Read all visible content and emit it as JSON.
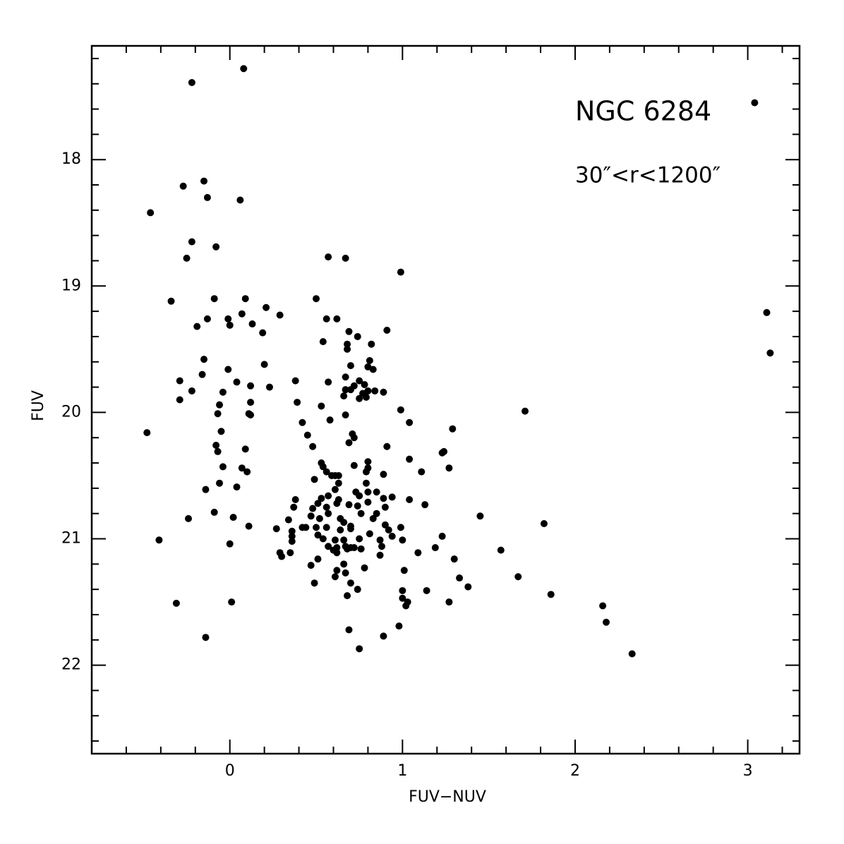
{
  "chart_data": {
    "type": "scatter",
    "xlabel": "FUV−NUV",
    "ylabel": "FUV",
    "annotations": [
      "NGC 6284",
      "30″<r<1200″"
    ],
    "xlim": [
      -0.8,
      3.3
    ],
    "ylim": [
      22.7,
      17.1
    ],
    "xticks": [
      0,
      1,
      2,
      3
    ],
    "yticks": [
      18,
      19,
      20,
      21,
      22
    ],
    "xticks_minor": [
      -0.6,
      -0.4,
      -0.2,
      0.2,
      0.4,
      0.6,
      0.8,
      1.2,
      1.4,
      1.6,
      1.8,
      2.2,
      2.4,
      2.6,
      2.8,
      3.2
    ],
    "yticks_minor": [
      17.2,
      17.4,
      17.6,
      17.8,
      18.2,
      18.4,
      18.6,
      18.8,
      19.2,
      19.4,
      19.6,
      19.8,
      20.2,
      20.4,
      20.6,
      20.8,
      21.2,
      21.4,
      21.6,
      21.8,
      22.2,
      22.4,
      22.6
    ],
    "color": "#000000",
    "x": [
      0.08,
      -0.22,
      3.04,
      -0.15,
      -0.27,
      -0.13,
      0.06,
      -0.46,
      -0.22,
      -0.08,
      -0.25,
      0.57,
      0.67,
      0.99,
      -0.34,
      -0.09,
      0.09,
      0.5,
      3.11,
      0.21,
      0.29,
      0.07,
      -0.13,
      -0.01,
      0.56,
      0.62,
      0.13,
      0,
      -0.19,
      0.19,
      0.91,
      0.69,
      0.74,
      0.54,
      0.68,
      0.82,
      0.68,
      3.13,
      -0.15,
      0.81,
      0.2,
      0.7,
      0.8,
      0.83,
      -0.01,
      -0.16,
      0.67,
      -0.29,
      0.38,
      0.57,
      0.75,
      0.04,
      0.72,
      0.78,
      0.12,
      0.23,
      -0.22,
      0.67,
      -0.04,
      0.7,
      0.84,
      0.77,
      0.8,
      0.89,
      0.66,
      -0.29,
      0.75,
      0.79,
      0.39,
      0.12,
      -0.06,
      0.53,
      0.99,
      1.71,
      -0.07,
      0.11,
      0.12,
      0.67,
      0.58,
      0.42,
      1.04,
      -0.48,
      -0.05,
      1.29,
      0.71,
      0.45,
      0.72,
      0.69,
      1.24,
      -0.08,
      0.48,
      0.09,
      0.91,
      1.23,
      -0.07,
      1.04,
      0.8,
      0.53,
      0.8,
      0.54,
      -0.04,
      0.07,
      0.72,
      1.27,
      0.56,
      0.1,
      0.79,
      1.11,
      0.59,
      0.61,
      0.63,
      0.89,
      0.49,
      -0.06,
      0.63,
      0.79,
      0.04,
      -0.14,
      0.61,
      0.8,
      0.73,
      0.85,
      0.57,
      0.75,
      0.89,
      0.94,
      1.04,
      0.38,
      0.63,
      0.53,
      0.62,
      0.51,
      1.13,
      0.69,
      0.8,
      0.74,
      0.37,
      0.48,
      0.56,
      0.9,
      1.45,
      0.57,
      0.47,
      0.76,
      0.85,
      -0.24,
      -0.09,
      0.02,
      0.34,
      0.52,
      0.64,
      0.83,
      1.82,
      0.66,
      0.11,
      0.42,
      0.44,
      0.5,
      0.56,
      0.7,
      0.7,
      0.9,
      0.99,
      0.27,
      0.92,
      0.64,
      0.36,
      1.23,
      0.51,
      0.81,
      0.94,
      -0.41,
      0.36,
      0.36,
      0.75,
      0.54,
      0.61,
      0.66,
      0.87,
      1.0,
      0,
      0.57,
      0.67,
      0.7,
      0.62,
      0.68,
      0.72,
      0.76,
      0.88,
      1.19,
      0.6,
      1.57,
      0.29,
      0.35,
      0.62,
      1.09,
      0.3,
      0.87,
      0.51,
      1.3,
      0.47,
      0.66,
      0.62,
      0.78,
      1.01,
      0.67,
      0.61,
      1.33,
      1.67,
      0.49,
      0.7,
      1.38,
      0.74,
      1.0,
      1.14,
      1.86,
      0.68,
      1.0,
      0.01,
      1.27,
      1.03,
      1.02,
      -0.31,
      2.16,
      2.18,
      0.69,
      0.98,
      0.89,
      -0.14,
      0.75,
      2.33
    ],
    "values": [
      17.28,
      17.39,
      17.55,
      18.17,
      18.21,
      18.3,
      18.32,
      18.42,
      18.65,
      18.69,
      18.78,
      18.77,
      18.78,
      18.89,
      19.12,
      19.1,
      19.1,
      19.1,
      19.21,
      19.17,
      19.23,
      19.22,
      19.26,
      19.26,
      19.26,
      19.26,
      19.3,
      19.31,
      19.32,
      19.37,
      19.35,
      19.36,
      19.4,
      19.44,
      19.46,
      19.46,
      19.5,
      19.53,
      19.58,
      19.59,
      19.62,
      19.63,
      19.64,
      19.66,
      19.66,
      19.7,
      19.72,
      19.75,
      19.75,
      19.76,
      19.75,
      19.76,
      19.79,
      19.78,
      19.79,
      19.8,
      19.83,
      19.82,
      19.84,
      19.82,
      19.83,
      19.85,
      19.83,
      19.84,
      19.87,
      19.9,
      19.89,
      19.88,
      19.92,
      19.92,
      19.94,
      19.95,
      19.98,
      19.99,
      20.01,
      20.01,
      20.02,
      20.02,
      20.06,
      20.08,
      20.08,
      20.16,
      20.15,
      20.13,
      20.17,
      20.18,
      20.2,
      20.24,
      20.31,
      20.26,
      20.27,
      20.29,
      20.27,
      20.32,
      20.31,
      20.37,
      20.39,
      20.4,
      20.44,
      20.43,
      20.43,
      20.44,
      20.42,
      20.44,
      20.47,
      20.47,
      20.47,
      20.47,
      20.5,
      20.5,
      20.5,
      20.49,
      20.53,
      20.56,
      20.56,
      20.56,
      20.59,
      20.61,
      20.61,
      20.63,
      20.63,
      20.63,
      20.66,
      20.66,
      20.68,
      20.67,
      20.69,
      20.69,
      20.69,
      20.68,
      20.72,
      20.72,
      20.73,
      20.73,
      20.71,
      20.74,
      20.75,
      20.76,
      20.75,
      20.75,
      20.82,
      20.8,
      20.82,
      20.8,
      20.8,
      20.84,
      20.79,
      20.83,
      20.85,
      20.84,
      20.84,
      20.84,
      20.88,
      20.87,
      20.9,
      20.91,
      20.91,
      20.91,
      20.91,
      20.9,
      20.92,
      20.89,
      20.91,
      20.92,
      20.93,
      20.93,
      20.94,
      20.98,
      20.97,
      20.96,
      20.98,
      21.01,
      20.98,
      21.02,
      21.0,
      21.0,
      21.01,
      21.01,
      21.01,
      21.01,
      21.04,
      21.06,
      21.06,
      21.07,
      21.07,
      21.08,
      21.07,
      21.08,
      21.06,
      21.07,
      21.09,
      21.09,
      21.11,
      21.11,
      21.11,
      21.11,
      21.14,
      21.13,
      21.16,
      21.16,
      21.21,
      21.2,
      21.25,
      21.23,
      21.25,
      21.27,
      21.3,
      21.31,
      21.3,
      21.35,
      21.35,
      21.38,
      21.4,
      21.41,
      21.41,
      21.44,
      21.45,
      21.47,
      21.5,
      21.5,
      21.5,
      21.53,
      21.51,
      21.53,
      21.66,
      21.72,
      21.69,
      21.77,
      21.78,
      21.87,
      21.91
    ]
  }
}
